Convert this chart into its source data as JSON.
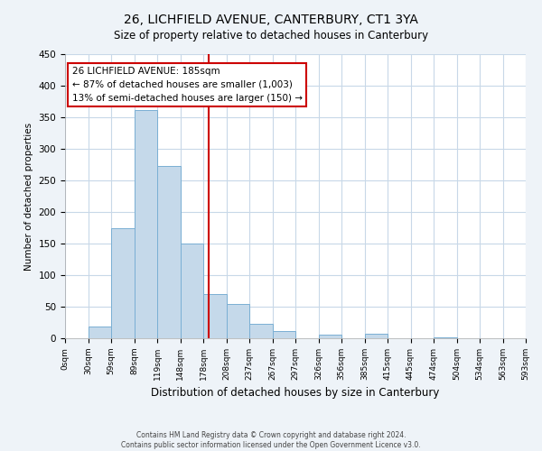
{
  "title": "26, LICHFIELD AVENUE, CANTERBURY, CT1 3YA",
  "subtitle": "Size of property relative to detached houses in Canterbury",
  "xlabel": "Distribution of detached houses by size in Canterbury",
  "ylabel": "Number of detached properties",
  "bin_labels": [
    "0sqm",
    "30sqm",
    "59sqm",
    "89sqm",
    "119sqm",
    "148sqm",
    "178sqm",
    "208sqm",
    "237sqm",
    "267sqm",
    "297sqm",
    "326sqm",
    "356sqm",
    "385sqm",
    "415sqm",
    "445sqm",
    "474sqm",
    "504sqm",
    "534sqm",
    "563sqm",
    "593sqm"
  ],
  "bar_heights": [
    0,
    18,
    175,
    362,
    273,
    150,
    70,
    54,
    23,
    12,
    0,
    6,
    0,
    7,
    0,
    0,
    1,
    0,
    0,
    0
  ],
  "bar_color": "#c5d9ea",
  "bar_edge_color": "#7aafd4",
  "marker_color": "#cc0000",
  "annotation_title": "26 LICHFIELD AVENUE: 185sqm",
  "annotation_line1": "← 87% of detached houses are smaller (1,003)",
  "annotation_line2": "13% of semi-detached houses are larger (150) →",
  "ylim": [
    0,
    450
  ],
  "yticks": [
    0,
    50,
    100,
    150,
    200,
    250,
    300,
    350,
    400,
    450
  ],
  "footer_line1": "Contains HM Land Registry data © Crown copyright and database right 2024.",
  "footer_line2": "Contains public sector information licensed under the Open Government Licence v3.0.",
  "background_color": "#eef3f8",
  "plot_background": "#ffffff",
  "grid_color": "#c8d8e8"
}
